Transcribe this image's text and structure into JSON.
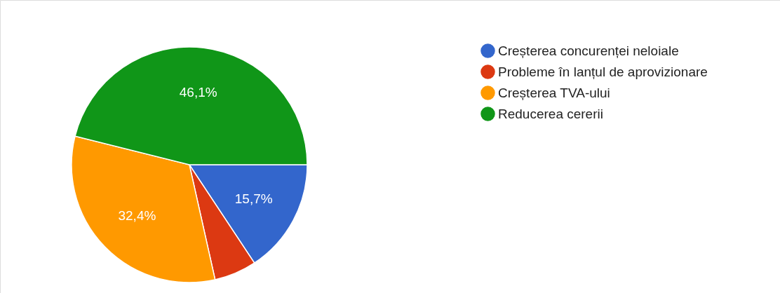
{
  "chart_data": {
    "type": "pie",
    "categories": [
      "Creșterea concurenței neloiale",
      "Probleme în lanțul de aprovizionare",
      "Creșterea TVA-ului",
      "Reducerea cererii"
    ],
    "values": [
      15.7,
      5.8,
      32.4,
      46.1
    ],
    "colors": [
      "#3366cc",
      "#dc3912",
      "#ff9900",
      "#109618"
    ],
    "value_labels": [
      "15,7%",
      null,
      "32,4%",
      "46,1%"
    ],
    "legend": "right"
  }
}
